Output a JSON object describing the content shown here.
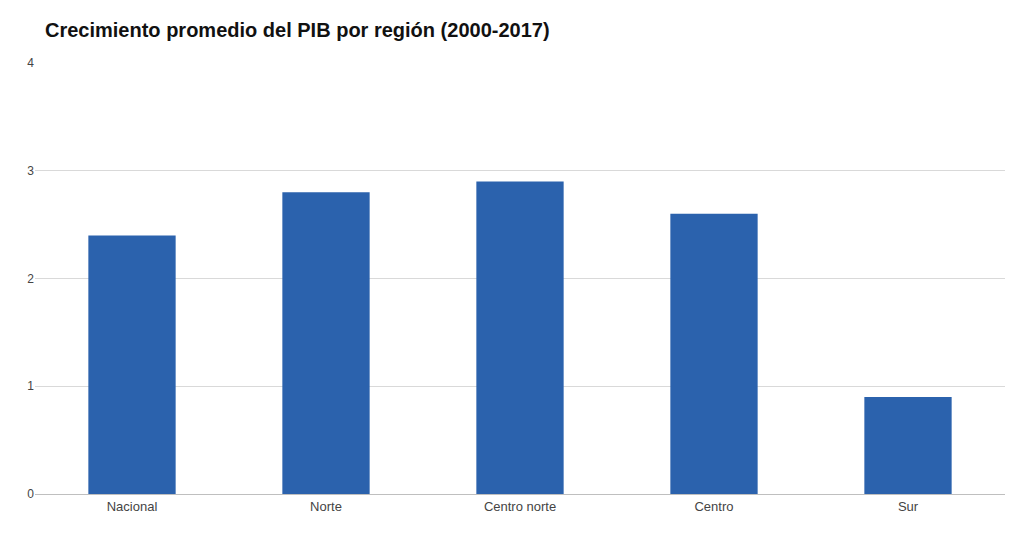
{
  "chart_data": {
    "type": "bar",
    "title": "Crecimiento promedio del PIB por región (2000-2017)",
    "categories": [
      "Nacional",
      "Norte",
      "Centro norte",
      "Centro",
      "Sur"
    ],
    "values": [
      2.4,
      2.8,
      2.9,
      2.6,
      0.9
    ],
    "color": "#2b62ad",
    "ylim": [
      0,
      4
    ],
    "yticks": [
      0,
      1,
      2,
      3,
      4
    ],
    "grid": true
  }
}
